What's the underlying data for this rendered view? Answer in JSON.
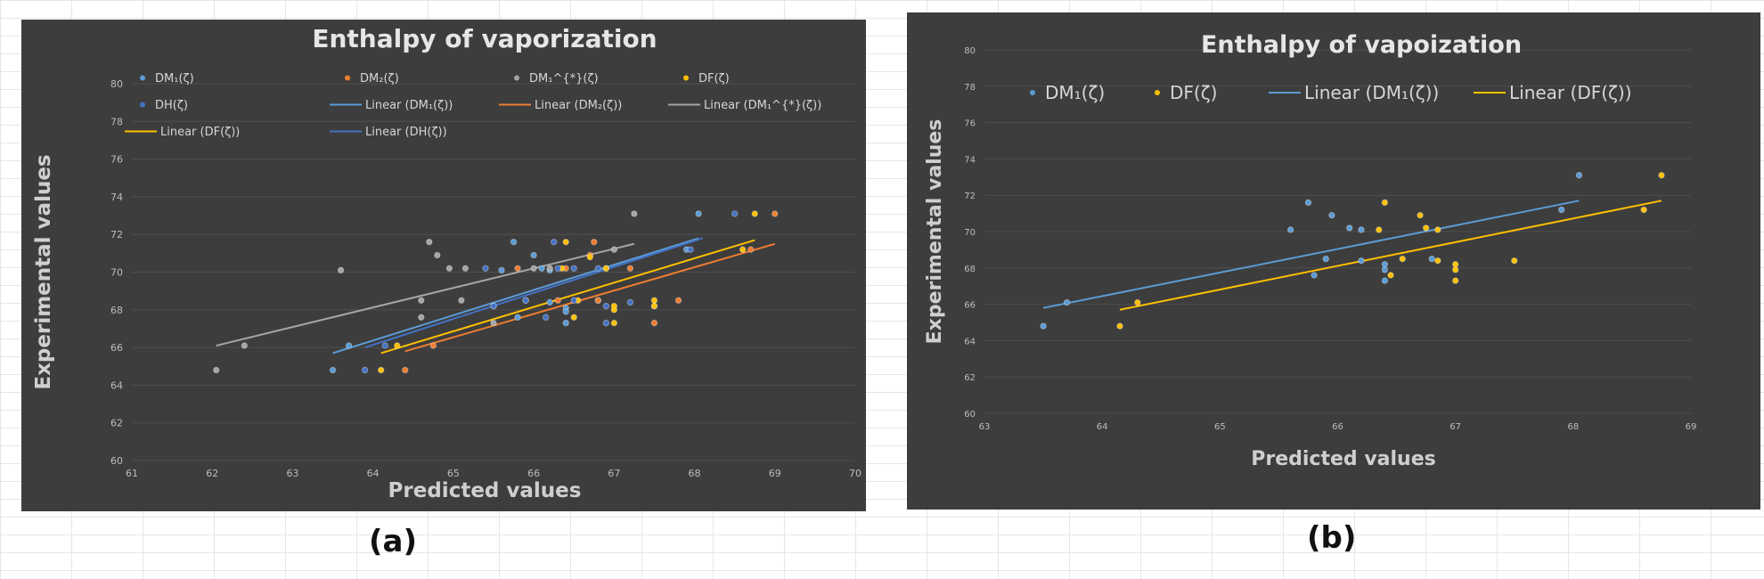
{
  "chart_data": [
    {
      "panel_label": "(a)",
      "type": "scatter",
      "title": "Enthalpy of vaporization",
      "xlabel": "Predicted values",
      "ylabel": "Experimental values",
      "xlim": [
        61,
        70
      ],
      "ylim": [
        60,
        80
      ],
      "xticks": [
        "61",
        "62",
        "63",
        "64",
        "65",
        "66",
        "67",
        "68",
        "69",
        "70"
      ],
      "yticks": [
        "60",
        "62",
        "64",
        "66",
        "68",
        "70",
        "72",
        "74",
        "76",
        "78",
        "80"
      ],
      "legend_position": "top",
      "legend": [
        {
          "label": "DM₁(ζ)",
          "kind": "marker",
          "color": "#5b9bd5"
        },
        {
          "label": "DM₂(ζ)",
          "kind": "marker",
          "color": "#ed7d31"
        },
        {
          "label": "DM₁^{*}(ζ)",
          "kind": "marker",
          "color": "#a5a5a5"
        },
        {
          "label": "DF(ζ)",
          "kind": "marker",
          "color": "#ffc000"
        },
        {
          "label": "DH(ζ)",
          "kind": "marker",
          "color": "#4472c4"
        },
        {
          "label": "Linear (DM₁(ζ))",
          "kind": "line",
          "color": "#5b9bd5"
        },
        {
          "label": "Linear (DM₂(ζ))",
          "kind": "line",
          "color": "#ed7d31"
        },
        {
          "label": "Linear (DM₁^{*}(ζ))",
          "kind": "line",
          "color": "#a5a5a5"
        },
        {
          "label": "Linear (DF(ζ))",
          "kind": "line",
          "color": "#ffc000"
        },
        {
          "label": "Linear (DH(ζ))",
          "kind": "line",
          "color": "#4472c4"
        }
      ],
      "series": [
        {
          "name": "DM₁(ζ)",
          "color": "#5b9bd5",
          "points": [
            [
              63.5,
              64.8
            ],
            [
              63.7,
              66.1
            ],
            [
              65.6,
              70.1
            ],
            [
              65.75,
              71.6
            ],
            [
              65.8,
              67.6
            ],
            [
              65.9,
              68.5
            ],
            [
              66.0,
              70.9
            ],
            [
              66.1,
              70.2
            ],
            [
              66.2,
              70.1
            ],
            [
              66.2,
              68.4
            ],
            [
              66.4,
              68.1
            ],
            [
              66.4,
              67.3
            ],
            [
              66.4,
              67.9
            ],
            [
              66.8,
              68.5
            ],
            [
              67.9,
              71.2
            ],
            [
              68.05,
              73.1
            ]
          ],
          "trend": [
            [
              63.5,
              65.7
            ],
            [
              68.05,
              71.8
            ]
          ]
        },
        {
          "name": "DM₂(ζ)",
          "color": "#ed7d31",
          "points": [
            [
              64.4,
              64.8
            ],
            [
              64.75,
              66.1
            ],
            [
              65.8,
              70.2
            ],
            [
              66.3,
              68.5
            ],
            [
              66.4,
              70.2
            ],
            [
              66.7,
              70.9
            ],
            [
              66.75,
              71.6
            ],
            [
              66.8,
              68.5
            ],
            [
              66.9,
              70.2
            ],
            [
              67.2,
              70.2
            ],
            [
              67.5,
              67.3
            ],
            [
              67.5,
              68.2
            ],
            [
              67.8,
              68.5
            ],
            [
              68.7,
              71.2
            ],
            [
              69.0,
              73.1
            ]
          ],
          "trend": [
            [
              64.4,
              65.8
            ],
            [
              69.0,
              71.5
            ]
          ]
        },
        {
          "name": "DM₁^{*}(ζ)",
          "color": "#a5a5a5",
          "points": [
            [
              62.05,
              64.8
            ],
            [
              62.4,
              66.1
            ],
            [
              63.6,
              70.1
            ],
            [
              64.6,
              67.6
            ],
            [
              64.6,
              68.5
            ],
            [
              64.7,
              71.6
            ],
            [
              64.8,
              70.9
            ],
            [
              64.95,
              70.2
            ],
            [
              65.1,
              68.5
            ],
            [
              65.15,
              70.2
            ],
            [
              65.5,
              67.3
            ],
            [
              65.5,
              68.2
            ],
            [
              66.0,
              70.2
            ],
            [
              66.2,
              70.2
            ],
            [
              67.0,
              71.2
            ],
            [
              67.25,
              73.1
            ]
          ],
          "trend": [
            [
              62.05,
              66.1
            ],
            [
              67.25,
              71.5
            ]
          ]
        },
        {
          "name": "DF(ζ)",
          "color": "#ffc000",
          "points": [
            [
              64.1,
              64.8
            ],
            [
              64.3,
              66.1
            ],
            [
              66.35,
              70.2
            ],
            [
              66.4,
              71.6
            ],
            [
              66.5,
              67.6
            ],
            [
              66.55,
              68.5
            ],
            [
              66.7,
              70.8
            ],
            [
              66.9,
              70.2
            ],
            [
              67.0,
              67.3
            ],
            [
              67.0,
              68.0
            ],
            [
              67.0,
              68.2
            ],
            [
              67.5,
              68.2
            ],
            [
              67.5,
              68.5
            ],
            [
              68.6,
              71.2
            ],
            [
              68.75,
              73.1
            ]
          ],
          "trend": [
            [
              64.1,
              65.7
            ],
            [
              68.75,
              71.7
            ]
          ]
        },
        {
          "name": "DH(ζ)",
          "color": "#4472c4",
          "points": [
            [
              63.9,
              64.8
            ],
            [
              64.15,
              66.1
            ],
            [
              65.4,
              70.2
            ],
            [
              65.5,
              68.2
            ],
            [
              65.9,
              68.5
            ],
            [
              66.15,
              67.6
            ],
            [
              66.25,
              71.6
            ],
            [
              66.3,
              70.2
            ],
            [
              66.5,
              68.5
            ],
            [
              66.5,
              70.2
            ],
            [
              66.8,
              70.2
            ],
            [
              66.9,
              67.3
            ],
            [
              66.9,
              68.2
            ],
            [
              67.2,
              68.4
            ],
            [
              67.95,
              71.2
            ],
            [
              68.5,
              73.1
            ]
          ],
          "trend": [
            [
              63.9,
              66.0
            ],
            [
              68.1,
              71.8
            ]
          ]
        }
      ]
    },
    {
      "panel_label": "(b)",
      "type": "scatter",
      "title": "Enthalpy of vapoization",
      "xlabel": "Predicted values",
      "ylabel": "Experimental values",
      "xlim": [
        63,
        69
      ],
      "ylim": [
        60,
        80
      ],
      "xticks": [
        "63",
        "64",
        "65",
        "66",
        "67",
        "68",
        "69"
      ],
      "yticks": [
        "60",
        "62",
        "64",
        "66",
        "68",
        "70",
        "72",
        "74",
        "76",
        "78",
        "80"
      ],
      "legend_position": "top",
      "legend": [
        {
          "label": "DM₁(ζ)",
          "kind": "marker",
          "color": "#5b9bd5"
        },
        {
          "label": "DF(ζ)",
          "kind": "marker",
          "color": "#ffc000"
        },
        {
          "label": "Linear (DM₁(ζ))",
          "kind": "line",
          "color": "#5b9bd5"
        },
        {
          "label": "Linear (DF(ζ))",
          "kind": "line",
          "color": "#ffc000"
        }
      ],
      "series": [
        {
          "name": "DM₁(ζ)",
          "color": "#5b9bd5",
          "points": [
            [
              63.5,
              64.8
            ],
            [
              63.7,
              66.1
            ],
            [
              65.6,
              70.1
            ],
            [
              65.75,
              71.6
            ],
            [
              65.8,
              67.6
            ],
            [
              65.9,
              68.5
            ],
            [
              65.95,
              70.9
            ],
            [
              66.1,
              70.2
            ],
            [
              66.2,
              70.1
            ],
            [
              66.2,
              68.4
            ],
            [
              66.4,
              68.2
            ],
            [
              66.4,
              67.3
            ],
            [
              66.4,
              67.9
            ],
            [
              66.8,
              68.5
            ],
            [
              67.9,
              71.2
            ],
            [
              68.05,
              73.1
            ]
          ],
          "trend": [
            [
              63.5,
              65.8
            ],
            [
              68.05,
              71.7
            ]
          ]
        },
        {
          "name": "DF(ζ)",
          "color": "#ffc000",
          "points": [
            [
              64.15,
              64.8
            ],
            [
              64.3,
              66.1
            ],
            [
              66.35,
              70.1
            ],
            [
              66.4,
              71.6
            ],
            [
              66.45,
              67.6
            ],
            [
              66.55,
              68.5
            ],
            [
              66.7,
              70.9
            ],
            [
              66.75,
              70.2
            ],
            [
              66.85,
              70.1
            ],
            [
              66.85,
              68.4
            ],
            [
              67.0,
              68.2
            ],
            [
              67.0,
              67.3
            ],
            [
              67.0,
              67.9
            ],
            [
              67.5,
              68.4
            ],
            [
              68.6,
              71.2
            ],
            [
              68.75,
              73.1
            ]
          ],
          "trend": [
            [
              64.15,
              65.7
            ],
            [
              68.75,
              71.7
            ]
          ]
        }
      ]
    }
  ]
}
